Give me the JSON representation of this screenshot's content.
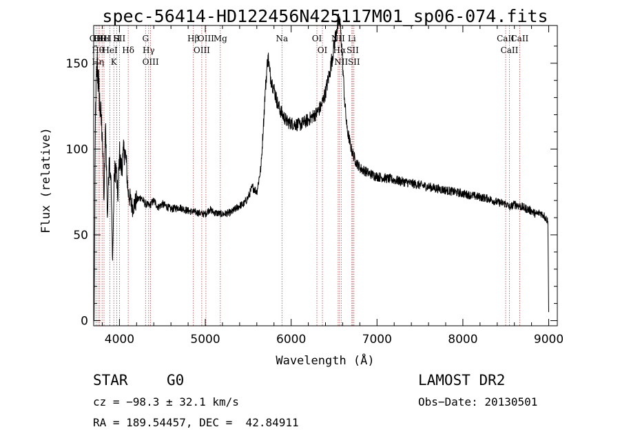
{
  "chart_data": {
    "type": "line",
    "title": "spec-56414-HD122456N425117M01_sp06-074.fits",
    "xlabel": "Wavelength (Å)",
    "ylabel": "Flux (relative)",
    "xlim": [
      3700,
      9100
    ],
    "ylim": [
      -3,
      172
    ],
    "x_ticks": [
      4000,
      5000,
      6000,
      7000,
      8000,
      9000
    ],
    "y_ticks": [
      0,
      50,
      100,
      150
    ],
    "grid": false,
    "series": [
      {
        "values_x": [
          3705,
          3720,
          3740,
          3760,
          3780,
          3800,
          3820,
          3840,
          3860,
          3880,
          3900,
          3920,
          3940,
          3960,
          3980,
          4000,
          4020,
          4040,
          4060,
          4080,
          4100,
          4150,
          4200,
          4250,
          4300,
          4350,
          4400,
          4450,
          4500,
          4600,
          4700,
          4800,
          4900,
          5000,
          5050,
          5100,
          5200,
          5300,
          5400,
          5450,
          5500,
          5550,
          5600,
          5650,
          5700,
          5730,
          5750,
          5770,
          5800,
          5850,
          5900,
          5950,
          6000,
          6100,
          6200,
          6300,
          6350,
          6400,
          6450,
          6500,
          6530,
          6560,
          6580,
          6600,
          6620,
          6650,
          6700,
          6750,
          6800,
          6900,
          7000,
          7100,
          7200,
          7300,
          7400,
          7500,
          7600,
          7700,
          7800,
          7900,
          8000,
          8100,
          8200,
          8300,
          8400,
          8500,
          8550,
          8600,
          8700,
          8750,
          8800,
          8850,
          8900,
          8950,
          8990,
          9000
        ],
        "values_y": [
          0,
          120,
          150,
          135,
          120,
          110,
          70,
          115,
          60,
          95,
          85,
          35,
          85,
          90,
          70,
          98,
          88,
          95,
          100,
          92,
          75,
          66,
          70,
          72,
          68,
          67,
          70,
          66,
          68,
          65,
          66,
          64,
          63,
          62,
          65,
          63,
          62,
          63,
          67,
          68,
          72,
          78,
          75,
          90,
          135,
          155,
          145,
          140,
          135,
          125,
          120,
          116,
          115,
          114,
          117,
          121,
          125,
          133,
          145,
          160,
          170,
          175,
          168,
          150,
          130,
          112,
          100,
          93,
          89,
          86,
          84,
          83,
          82,
          81,
          80,
          79,
          78,
          77,
          76,
          75,
          74,
          73,
          72,
          71,
          69,
          68,
          66,
          68,
          66,
          65,
          64,
          62,
          63,
          61,
          58,
          5
        ]
      }
    ],
    "lines": [
      {
        "w": 3727,
        "labels": [
          "OII"
        ]
      },
      {
        "w": 3750,
        "labels": [
          "Hθ",
          "Hη"
        ]
      },
      {
        "w": 3770,
        "labels": [
          "Hθ"
        ]
      },
      {
        "w": 3798,
        "labels": [
          "OIII"
        ]
      },
      {
        "w": 3820,
        "labels": [
          "HeI"
        ]
      },
      {
        "w": 3889,
        "labels": [
          "HeI"
        ]
      },
      {
        "w": 3934,
        "labels": [
          "K"
        ]
      },
      {
        "w": 3969,
        "labels": [
          "H"
        ]
      },
      {
        "w": 4000,
        "labels": [
          "SII"
        ]
      },
      {
        "w": 4102,
        "labels": [
          "Hδ"
        ]
      },
      {
        "w": 4304,
        "labels": [
          "G"
        ]
      },
      {
        "w": 4340,
        "labels": [
          "Hγ"
        ]
      },
      {
        "w": 4363,
        "labels": [
          "OIII"
        ]
      },
      {
        "w": 4861,
        "labels": [
          "Hβ"
        ]
      },
      {
        "w": 4959,
        "labels": [
          "OIII"
        ]
      },
      {
        "w": 5007,
        "labels": [
          "OIII"
        ]
      },
      {
        "w": 5175,
        "labels": [
          "Mg"
        ]
      },
      {
        "w": 5893,
        "labels": [
          "Na"
        ]
      },
      {
        "w": 6300,
        "labels": [
          "OI"
        ]
      },
      {
        "w": 6364,
        "labels": [
          "OI"
        ]
      },
      {
        "w": 6548,
        "labels": [
          "NII"
        ]
      },
      {
        "w": 6563,
        "labels": [
          "Hα"
        ]
      },
      {
        "w": 6583,
        "labels": [
          "NII"
        ]
      },
      {
        "w": 6707,
        "labels": [
          "Li"
        ]
      },
      {
        "w": 6717,
        "labels": [
          "SII"
        ]
      },
      {
        "w": 6731,
        "labels": [
          "SII"
        ]
      },
      {
        "w": 8498,
        "labels": [
          "CaII"
        ]
      },
      {
        "w": 8542,
        "labels": [
          "CaII"
        ]
      },
      {
        "w": 8662,
        "labels": [
          "CaII"
        ]
      }
    ],
    "line_color": "#c04040"
  },
  "info": {
    "class": "STAR",
    "subclass": "G0",
    "survey": "LAMOST DR2",
    "cz": "cz = −98.3 ± 32.1 km/s",
    "obs_date": "Obs−Date: 20130501",
    "coords": "RA = 189.54457, DEC =  42.84911"
  }
}
